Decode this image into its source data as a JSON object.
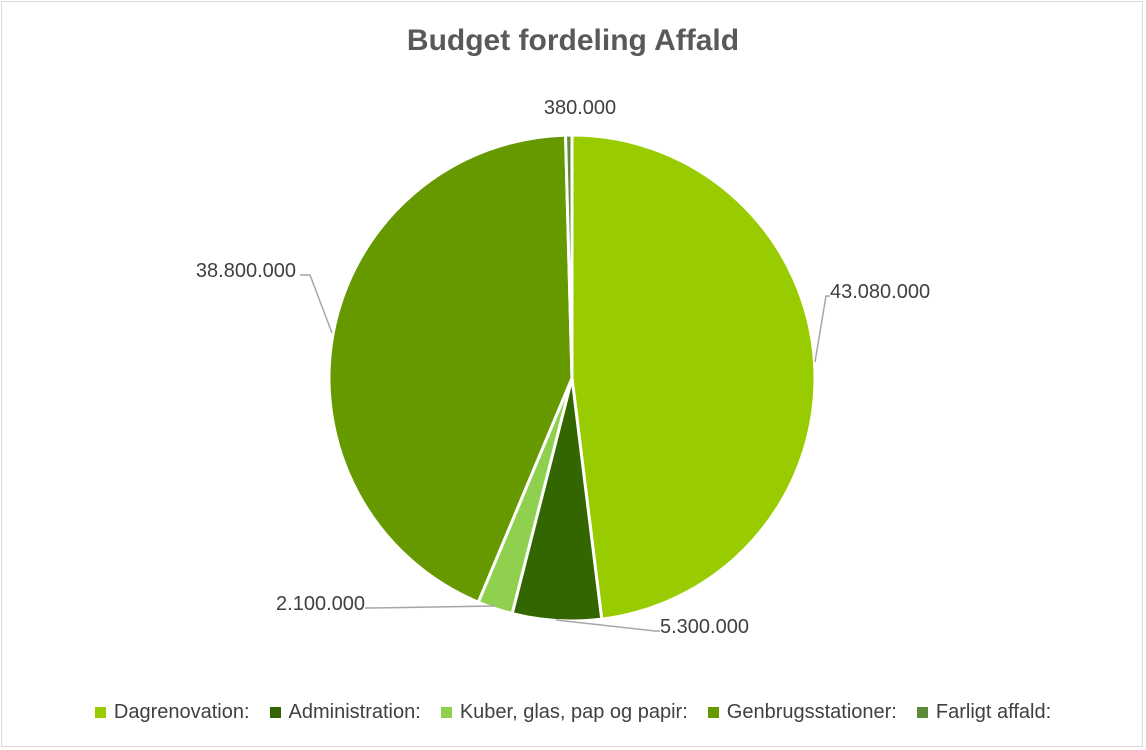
{
  "chart_data": {
    "type": "pie",
    "title": "Budget fordeling Affald",
    "categories": [
      "Dagrenovation:",
      "Administration:",
      "Kuber, glas, pap og papir:",
      "Genbrugsstationer:",
      "Farligt affald:"
    ],
    "values": [
      43080000,
      5300000,
      2100000,
      38800000,
      380000
    ],
    "data_labels": [
      "43.080.000",
      "5.300.000",
      "2.100.000",
      "38.800.000",
      "380.000"
    ],
    "colors": [
      "#99cc00",
      "#336600",
      "#8fd14f",
      "#669900",
      "#5f8a3a"
    ],
    "legend_position": "bottom"
  }
}
